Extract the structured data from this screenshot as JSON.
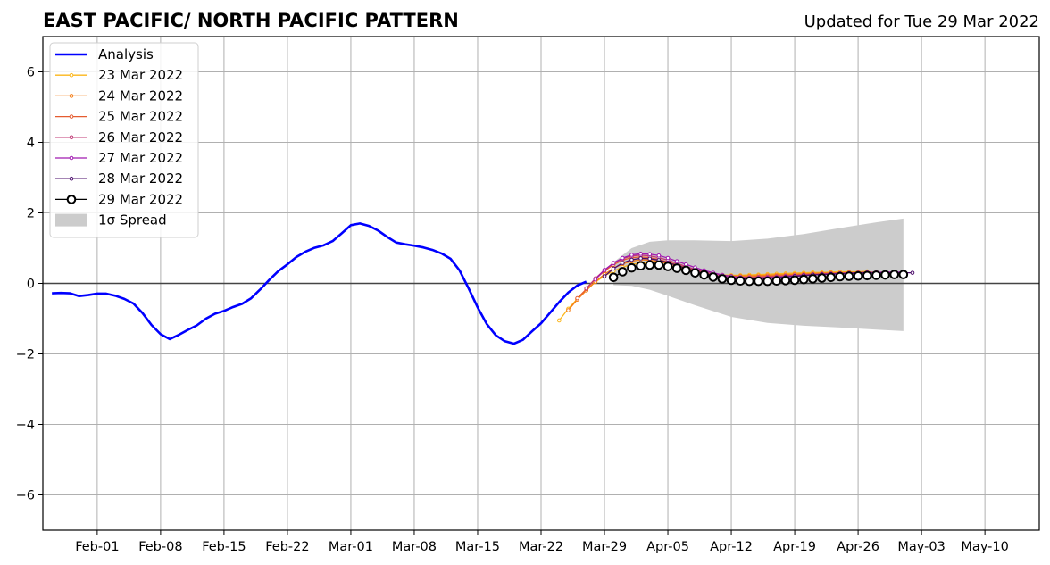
{
  "chart_data": {
    "type": "line",
    "title": "EAST PACIFIC/ NORTH PACIFIC PATTERN",
    "subtitle": "Updated for Tue 29 Mar 2022",
    "xlabel": "",
    "ylabel": "",
    "xlim": [
      "2022-01-26",
      "2022-05-16"
    ],
    "ylim": [
      -7,
      7
    ],
    "grid": true,
    "legend_position": "top-left",
    "x_ticks": [
      {
        "date": "2022-02-01",
        "label": "Feb-01"
      },
      {
        "date": "2022-02-08",
        "label": "Feb-08"
      },
      {
        "date": "2022-02-15",
        "label": "Feb-15"
      },
      {
        "date": "2022-02-22",
        "label": "Feb-22"
      },
      {
        "date": "2022-03-01",
        "label": "Mar-01"
      },
      {
        "date": "2022-03-08",
        "label": "Mar-08"
      },
      {
        "date": "2022-03-15",
        "label": "Mar-15"
      },
      {
        "date": "2022-03-22",
        "label": "Mar-22"
      },
      {
        "date": "2022-03-29",
        "label": "Mar-29"
      },
      {
        "date": "2022-04-05",
        "label": "Apr-05"
      },
      {
        "date": "2022-04-12",
        "label": "Apr-12"
      },
      {
        "date": "2022-04-19",
        "label": "Apr-19"
      },
      {
        "date": "2022-04-26",
        "label": "Apr-26"
      },
      {
        "date": "2022-05-03",
        "label": "May-03"
      },
      {
        "date": "2022-05-10",
        "label": "May-10"
      }
    ],
    "y_ticks": [
      {
        "value": -6,
        "label": "−6"
      },
      {
        "value": -4,
        "label": "−4"
      },
      {
        "value": -2,
        "label": "−2"
      },
      {
        "value": 0,
        "label": "0"
      },
      {
        "value": 2,
        "label": "2"
      },
      {
        "value": 4,
        "label": "4"
      },
      {
        "value": 6,
        "label": "6"
      }
    ],
    "analysis": {
      "name": "Analysis",
      "color": "#0000ff",
      "start_date": "2022-01-27",
      "values": [
        -0.28,
        -0.27,
        -0.28,
        -0.36,
        -0.33,
        -0.29,
        -0.29,
        -0.35,
        -0.44,
        -0.57,
        -0.84,
        -1.18,
        -1.44,
        -1.58,
        -1.46,
        -1.32,
        -1.19,
        -1.0,
        -0.86,
        -0.78,
        -0.67,
        -0.58,
        -0.42,
        -0.17,
        0.1,
        0.35,
        0.54,
        0.75,
        0.9,
        1.01,
        1.08,
        1.2,
        1.42,
        1.65,
        1.7,
        1.63,
        1.5,
        1.32,
        1.16,
        1.11,
        1.07,
        1.02,
        0.95,
        0.85,
        0.7,
        0.37,
        -0.14,
        -0.68,
        -1.15,
        -1.47,
        -1.64,
        -1.71,
        -1.6,
        -1.36,
        -1.13,
        -0.83,
        -0.53,
        -0.26,
        -0.06,
        0.05
      ]
    },
    "forecasts": [
      {
        "name": "23 Mar 2022",
        "color": "#fbb61a",
        "start_date": "2022-03-24",
        "values": [
          -1.05,
          -0.72,
          -0.44,
          -0.19,
          0.04,
          0.21,
          0.35,
          0.46,
          0.54,
          0.58,
          0.58,
          0.55,
          0.5,
          0.44,
          0.39,
          0.34,
          0.29,
          0.26,
          0.24,
          0.23,
          0.23,
          0.24,
          0.25,
          0.26,
          0.27,
          0.28,
          0.29,
          0.3,
          0.31,
          0.31,
          0.32,
          0.33,
          0.33,
          0.33,
          0.34
        ]
      },
      {
        "name": "24 Mar 2022",
        "color": "#f57d15",
        "start_date": "2022-03-25",
        "values": [
          -0.76,
          -0.46,
          -0.2,
          0.05,
          0.26,
          0.43,
          0.55,
          0.63,
          0.67,
          0.66,
          0.62,
          0.56,
          0.49,
          0.42,
          0.36,
          0.3,
          0.26,
          0.23,
          0.21,
          0.21,
          0.21,
          0.22,
          0.23,
          0.24,
          0.25,
          0.26,
          0.27,
          0.28,
          0.29,
          0.3,
          0.3,
          0.31,
          0.31,
          0.32,
          0.32
        ]
      },
      {
        "name": "25 Mar 2022",
        "color": "#e55c30",
        "start_date": "2022-03-26",
        "values": [
          -0.42,
          -0.16,
          0.12,
          0.35,
          0.53,
          0.66,
          0.73,
          0.75,
          0.73,
          0.68,
          0.61,
          0.53,
          0.45,
          0.38,
          0.31,
          0.26,
          0.22,
          0.19,
          0.18,
          0.18,
          0.19,
          0.2,
          0.21,
          0.22,
          0.23,
          0.25,
          0.26,
          0.27,
          0.28,
          0.29,
          0.3,
          0.3,
          0.31,
          0.31,
          0.32
        ]
      },
      {
        "name": "26 Mar 2022",
        "color": "#c03a76",
        "start_date": "2022-03-27",
        "values": [
          -0.14,
          0.14,
          0.38,
          0.57,
          0.7,
          0.78,
          0.8,
          0.78,
          0.73,
          0.66,
          0.57,
          0.48,
          0.4,
          0.33,
          0.27,
          0.22,
          0.19,
          0.17,
          0.16,
          0.17,
          0.18,
          0.19,
          0.21,
          0.22,
          0.24,
          0.25,
          0.26,
          0.27,
          0.28,
          0.29,
          0.3,
          0.31,
          0.31,
          0.32,
          0.32
        ]
      },
      {
        "name": "27 Mar 2022",
        "color": "#a01ab0",
        "start_date": "2022-03-28",
        "values": [
          0.11,
          0.38,
          0.58,
          0.72,
          0.81,
          0.84,
          0.83,
          0.79,
          0.72,
          0.63,
          0.54,
          0.45,
          0.37,
          0.3,
          0.24,
          0.2,
          0.17,
          0.15,
          0.15,
          0.16,
          0.17,
          0.19,
          0.21,
          0.22,
          0.24,
          0.26,
          0.27,
          0.28,
          0.29,
          0.3,
          0.31,
          0.31,
          0.32,
          0.32,
          0.32
        ]
      },
      {
        "name": "28 Mar 2022",
        "color": "#4b0c6b",
        "start_date": "2022-03-29",
        "values": [
          0.2,
          0.42,
          0.58,
          0.67,
          0.71,
          0.7,
          0.66,
          0.59,
          0.51,
          0.43,
          0.35,
          0.28,
          0.22,
          0.18,
          0.15,
          0.13,
          0.13,
          0.13,
          0.14,
          0.16,
          0.18,
          0.2,
          0.22,
          0.24,
          0.25,
          0.26,
          0.27,
          0.28,
          0.29,
          0.29,
          0.3,
          0.3,
          0.3,
          0.3,
          0.3
        ]
      },
      {
        "name": "29 Mar 2022",
        "color": "#000000",
        "start_date": "2022-03-30",
        "values": [
          0.17,
          0.33,
          0.44,
          0.5,
          0.52,
          0.52,
          0.48,
          0.43,
          0.37,
          0.3,
          0.24,
          0.18,
          0.13,
          0.09,
          0.07,
          0.06,
          0.06,
          0.06,
          0.07,
          0.08,
          0.09,
          0.11,
          0.13,
          0.15,
          0.17,
          0.19,
          0.2,
          0.21,
          0.22,
          0.23,
          0.24,
          0.25,
          0.25
        ]
      }
    ],
    "spread": {
      "name": "1σ Spread",
      "color": "#cccccc",
      "dates": [
        "2022-03-30",
        "2022-04-01",
        "2022-04-03",
        "2022-04-05",
        "2022-04-08",
        "2022-04-12",
        "2022-04-16",
        "2022-04-20",
        "2022-04-24",
        "2022-04-28",
        "2022-05-01"
      ],
      "upper": [
        0.6,
        1.0,
        1.18,
        1.22,
        1.22,
        1.2,
        1.27,
        1.4,
        1.57,
        1.73,
        1.84
      ],
      "lower": [
        -0.05,
        -0.07,
        -0.18,
        -0.35,
        -0.62,
        -0.95,
        -1.12,
        -1.2,
        -1.25,
        -1.31,
        -1.35
      ]
    }
  }
}
